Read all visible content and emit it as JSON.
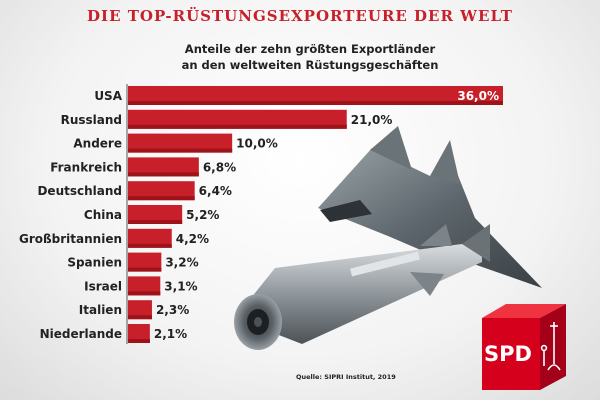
{
  "title": "DIE TOP-RÜSTUNGSEXPORTEURE DER WELT",
  "subtitle_line1": "Anteile der zehn größten Exportländer",
  "subtitle_line2": "an den weltweiten Rüstungsgeschäften",
  "source": "Quelle: SIPRI Institut, 2019",
  "logo_text": "SPD",
  "colors": {
    "bar": "#c8202a",
    "bar_dark": "#9e1219",
    "title": "#c8202a"
  },
  "chart_data": {
    "type": "bar",
    "orientation": "horizontal",
    "title": "DIE TOP-RÜSTUNGSEXPORTEURE DER WELT",
    "categories": [
      "USA",
      "Russland",
      "Andere",
      "Frankreich",
      "Deutschland",
      "China",
      "Großbritannien",
      "Spanien",
      "Israel",
      "Italien",
      "Niederlande"
    ],
    "values": [
      36.0,
      21.0,
      10.0,
      6.8,
      6.4,
      5.2,
      4.2,
      3.2,
      3.1,
      2.3,
      2.1
    ],
    "value_labels": [
      "36,0%",
      "21,0%",
      "10,0%",
      "6,8%",
      "6,4%",
      "5,2%",
      "4,2%",
      "3,2%",
      "3,1%",
      "2,3%",
      "2,1%"
    ],
    "unit": "%",
    "xlim": [
      0,
      36
    ],
    "grid": false,
    "legend": "none"
  }
}
